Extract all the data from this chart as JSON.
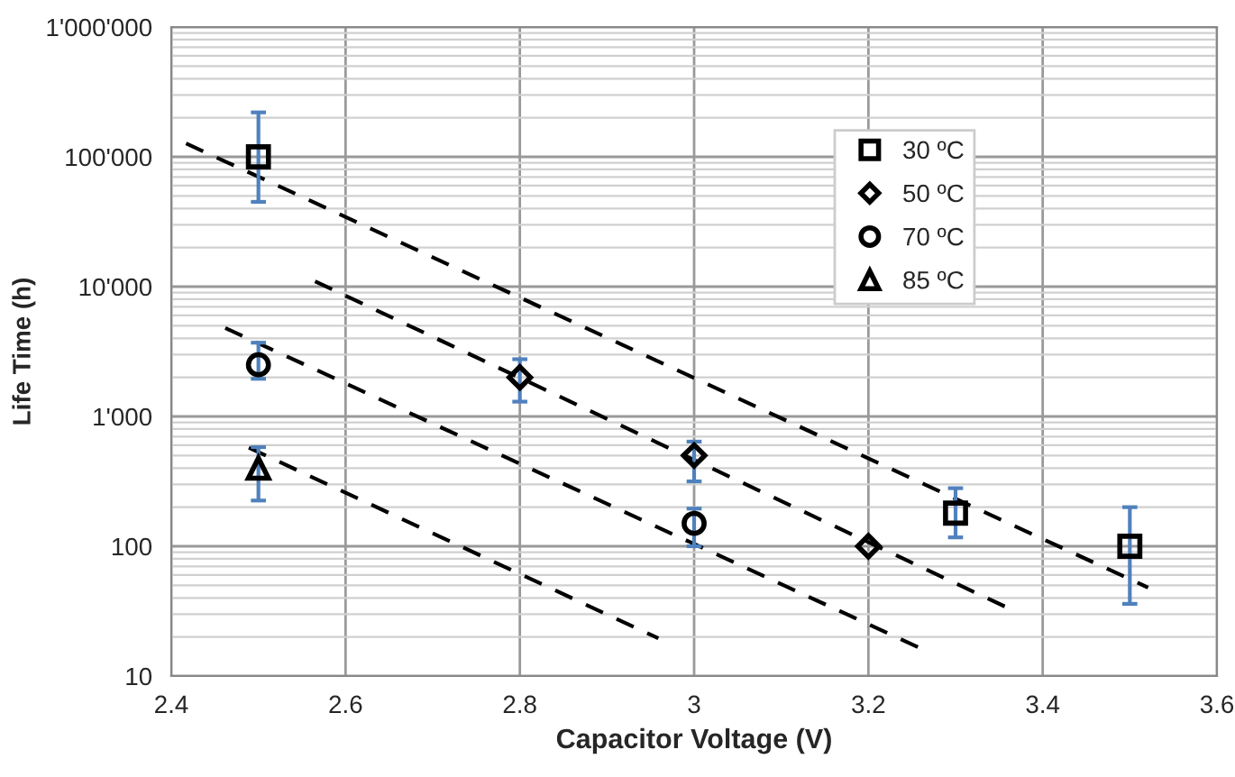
{
  "chart_data": {
    "type": "scatter",
    "xlabel": "Capacitor Voltage (V)",
    "ylabel": "Life Time (h)",
    "log": "y",
    "grid": true,
    "legend": "top right",
    "xlim": [
      2.4,
      3.6
    ],
    "xticks": [
      2.4,
      2.6,
      2.8,
      3,
      3.2,
      3.4,
      3.6
    ],
    "ylim": [
      10,
      1000000
    ],
    "yticks": [
      10,
      100,
      {
        "value": 1000,
        "label": "1'000"
      },
      {
        "value": 10000,
        "label": "10'000"
      },
      {
        "value": 100000,
        "label": "100'000"
      },
      {
        "value": 1000000,
        "label": "1'000'000"
      }
    ],
    "series": [
      {
        "name": "30 ºC",
        "color": "#000000",
        "marker": "square",
        "x": [
          2.5,
          3.3,
          3.5
        ],
        "values": [
          100000,
          180,
          100
        ],
        "errors": [
          [
            45000,
            220000
          ],
          [
            117,
            280
          ],
          [
            36,
            200
          ]
        ]
      },
      {
        "name": "50 ºC",
        "color": "#000000",
        "marker": "diamond",
        "x": [
          2.8,
          3.0,
          3.2
        ],
        "values": [
          2000,
          500,
          100
        ],
        "errors": [
          [
            1300,
            2760
          ],
          [
            316,
            640
          ],
          null
        ]
      },
      {
        "name": "70 ºC",
        "color": "#000000",
        "marker": "circle",
        "x": [
          2.5,
          3.0
        ],
        "values": [
          2500,
          150
        ],
        "errors": [
          [
            1950,
            3700
          ],
          [
            100,
            195
          ]
        ]
      },
      {
        "name": "85 ºC",
        "color": "#000000",
        "marker": "triangle",
        "x": [
          2.5
        ],
        "values": [
          400
        ],
        "errors": [
          [
            225,
            580
          ]
        ]
      },
      {
        "type": "line",
        "line_style": "dashed",
        "color": "#000000",
        "x": [
          2.417,
          3.521
        ],
        "values": [
          127000,
          48
        ]
      },
      {
        "type": "line",
        "line_style": "dashed",
        "color": "#000000",
        "x": [
          2.565,
          3.358
        ],
        "values": [
          11000,
          34
        ]
      },
      {
        "type": "line",
        "line_style": "dashed",
        "color": "#000000",
        "x": [
          2.462,
          3.263
        ],
        "values": [
          4800,
          16
        ]
      },
      {
        "type": "line",
        "line_style": "dashed",
        "color": "#000000",
        "x": [
          2.489,
          2.959
        ],
        "values": [
          575,
          19.5
        ]
      }
    ]
  }
}
